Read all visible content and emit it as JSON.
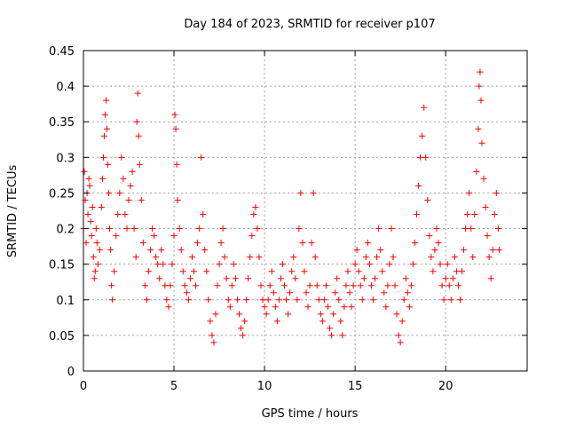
{
  "chart_data": {
    "type": "scatter",
    "title": "Day 184 of 2023, SRMTID for receiver p107",
    "xlabel": "GPS time / hours",
    "ylabel": "SRMTID / TECUs",
    "xlim": [
      0,
      24.5
    ],
    "ylim": [
      0,
      0.45
    ],
    "xticks": [
      0,
      5,
      10,
      15,
      20
    ],
    "xtick_labels": [
      "0",
      "5",
      "10",
      "15",
      "20"
    ],
    "yticks": [
      0,
      0.05,
      0.1,
      0.15,
      0.2,
      0.25,
      0.3,
      0.35,
      0.4,
      0.45
    ],
    "ytick_labels": [
      "0",
      "0.05",
      "0.1",
      "0.15",
      "0.2",
      "0.25",
      "0.3",
      "0.35",
      "0.4",
      "0.45"
    ],
    "grid": true,
    "marker": "plus",
    "color": "#ff0000",
    "series": [
      {
        "name": "SRMTID",
        "points": [
          [
            0.0,
            0.2
          ],
          [
            0.05,
            0.28
          ],
          [
            0.1,
            0.24
          ],
          [
            0.15,
            0.18
          ],
          [
            0.2,
            0.25
          ],
          [
            0.25,
            0.22
          ],
          [
            0.3,
            0.27
          ],
          [
            0.35,
            0.26
          ],
          [
            0.4,
            0.21
          ],
          [
            0.45,
            0.19
          ],
          [
            0.5,
            0.23
          ],
          [
            0.55,
            0.16
          ],
          [
            0.6,
            0.13
          ],
          [
            0.65,
            0.14
          ],
          [
            0.7,
            0.2
          ],
          [
            0.75,
            0.18
          ],
          [
            0.8,
            0.15
          ],
          [
            0.9,
            0.17
          ],
          [
            1.0,
            0.23
          ],
          [
            1.05,
            0.27
          ],
          [
            1.1,
            0.3
          ],
          [
            1.15,
            0.33
          ],
          [
            1.2,
            0.36
          ],
          [
            1.25,
            0.38
          ],
          [
            1.3,
            0.34
          ],
          [
            1.35,
            0.29
          ],
          [
            1.4,
            0.25
          ],
          [
            1.45,
            0.2
          ],
          [
            1.5,
            0.17
          ],
          [
            1.55,
            0.12
          ],
          [
            1.6,
            0.1
          ],
          [
            1.7,
            0.14
          ],
          [
            1.8,
            0.19
          ],
          [
            1.9,
            0.22
          ],
          [
            2.0,
            0.25
          ],
          [
            2.1,
            0.3
          ],
          [
            2.2,
            0.27
          ],
          [
            2.3,
            0.22
          ],
          [
            2.4,
            0.2
          ],
          [
            2.5,
            0.24
          ],
          [
            2.6,
            0.26
          ],
          [
            2.7,
            0.28
          ],
          [
            2.8,
            0.2
          ],
          [
            2.9,
            0.16
          ],
          [
            2.95,
            0.35
          ],
          [
            3.0,
            0.39
          ],
          [
            3.05,
            0.33
          ],
          [
            3.1,
            0.29
          ],
          [
            3.2,
            0.24
          ],
          [
            3.3,
            0.18
          ],
          [
            3.4,
            0.12
          ],
          [
            3.5,
            0.1
          ],
          [
            3.6,
            0.14
          ],
          [
            3.7,
            0.17
          ],
          [
            3.8,
            0.2
          ],
          [
            3.9,
            0.19
          ],
          [
            4.0,
            0.16
          ],
          [
            4.1,
            0.15
          ],
          [
            4.2,
            0.13
          ],
          [
            4.3,
            0.17
          ],
          [
            4.4,
            0.15
          ],
          [
            4.5,
            0.12
          ],
          [
            4.6,
            0.1
          ],
          [
            4.7,
            0.09
          ],
          [
            4.8,
            0.12
          ],
          [
            4.9,
            0.15
          ],
          [
            5.0,
            0.19
          ],
          [
            5.05,
            0.36
          ],
          [
            5.1,
            0.34
          ],
          [
            5.15,
            0.29
          ],
          [
            5.2,
            0.24
          ],
          [
            5.3,
            0.2
          ],
          [
            5.4,
            0.17
          ],
          [
            5.5,
            0.14
          ],
          [
            5.6,
            0.12
          ],
          [
            5.7,
            0.11
          ],
          [
            5.8,
            0.1
          ],
          [
            5.9,
            0.13
          ],
          [
            6.0,
            0.16
          ],
          [
            6.1,
            0.14
          ],
          [
            6.2,
            0.12
          ],
          [
            6.3,
            0.18
          ],
          [
            6.4,
            0.2
          ],
          [
            6.5,
            0.3
          ],
          [
            6.6,
            0.22
          ],
          [
            6.7,
            0.17
          ],
          [
            6.8,
            0.14
          ],
          [
            6.9,
            0.1
          ],
          [
            7.0,
            0.07
          ],
          [
            7.1,
            0.05
          ],
          [
            7.2,
            0.04
          ],
          [
            7.3,
            0.08
          ],
          [
            7.4,
            0.12
          ],
          [
            7.5,
            0.15
          ],
          [
            7.6,
            0.18
          ],
          [
            7.7,
            0.2
          ],
          [
            7.8,
            0.16
          ],
          [
            7.9,
            0.13
          ],
          [
            8.0,
            0.1
          ],
          [
            8.1,
            0.09
          ],
          [
            8.2,
            0.12
          ],
          [
            8.3,
            0.15
          ],
          [
            8.4,
            0.13
          ],
          [
            8.5,
            0.1
          ],
          [
            8.6,
            0.08
          ],
          [
            8.7,
            0.06
          ],
          [
            8.8,
            0.05
          ],
          [
            8.9,
            0.07
          ],
          [
            9.0,
            0.1
          ],
          [
            9.1,
            0.13
          ],
          [
            9.2,
            0.16
          ],
          [
            9.3,
            0.19
          ],
          [
            9.4,
            0.22
          ],
          [
            9.5,
            0.23
          ],
          [
            9.6,
            0.2
          ],
          [
            9.7,
            0.16
          ],
          [
            9.8,
            0.12
          ],
          [
            9.9,
            0.1
          ],
          [
            10.0,
            0.09
          ],
          [
            10.1,
            0.08
          ],
          [
            10.2,
            0.1
          ],
          [
            10.3,
            0.12
          ],
          [
            10.4,
            0.14
          ],
          [
            10.5,
            0.11
          ],
          [
            10.6,
            0.09
          ],
          [
            10.7,
            0.07
          ],
          [
            10.8,
            0.1
          ],
          [
            10.9,
            0.13
          ],
          [
            11.0,
            0.15
          ],
          [
            11.1,
            0.12
          ],
          [
            11.2,
            0.1
          ],
          [
            11.3,
            0.08
          ],
          [
            11.4,
            0.11
          ],
          [
            11.5,
            0.14
          ],
          [
            11.6,
            0.16
          ],
          [
            11.7,
            0.13
          ],
          [
            11.8,
            0.1
          ],
          [
            11.9,
            0.2
          ],
          [
            12.0,
            0.25
          ],
          [
            12.1,
            0.18
          ],
          [
            12.2,
            0.14
          ],
          [
            12.3,
            0.11
          ],
          [
            12.4,
            0.09
          ],
          [
            12.5,
            0.12
          ],
          [
            12.6,
            0.18
          ],
          [
            12.7,
            0.25
          ],
          [
            12.8,
            0.16
          ],
          [
            12.9,
            0.12
          ],
          [
            13.0,
            0.1
          ],
          [
            13.1,
            0.08
          ],
          [
            13.2,
            0.07
          ],
          [
            13.3,
            0.1
          ],
          [
            13.4,
            0.12
          ],
          [
            13.5,
            0.09
          ],
          [
            13.6,
            0.06
          ],
          [
            13.7,
            0.05
          ],
          [
            13.8,
            0.08
          ],
          [
            13.9,
            0.11
          ],
          [
            14.0,
            0.13
          ],
          [
            14.1,
            0.1
          ],
          [
            14.2,
            0.07
          ],
          [
            14.3,
            0.05
          ],
          [
            14.4,
            0.09
          ],
          [
            14.5,
            0.12
          ],
          [
            14.6,
            0.14
          ],
          [
            14.7,
            0.11
          ],
          [
            14.8,
            0.09
          ],
          [
            14.9,
            0.12
          ],
          [
            15.0,
            0.15
          ],
          [
            15.1,
            0.17
          ],
          [
            15.2,
            0.14
          ],
          [
            15.3,
            0.12
          ],
          [
            15.4,
            0.1
          ],
          [
            15.5,
            0.13
          ],
          [
            15.6,
            0.16
          ],
          [
            15.7,
            0.18
          ],
          [
            15.8,
            0.15
          ],
          [
            15.9,
            0.12
          ],
          [
            16.0,
            0.1
          ],
          [
            16.1,
            0.13
          ],
          [
            16.2,
            0.16
          ],
          [
            16.3,
            0.2
          ],
          [
            16.4,
            0.17
          ],
          [
            16.5,
            0.14
          ],
          [
            16.6,
            0.11
          ],
          [
            16.7,
            0.09
          ],
          [
            16.8,
            0.12
          ],
          [
            16.9,
            0.15
          ],
          [
            17.0,
            0.2
          ],
          [
            17.1,
            0.16
          ],
          [
            17.2,
            0.12
          ],
          [
            17.3,
            0.08
          ],
          [
            17.4,
            0.05
          ],
          [
            17.5,
            0.04
          ],
          [
            17.6,
            0.07
          ],
          [
            17.7,
            0.1
          ],
          [
            17.8,
            0.13
          ],
          [
            17.9,
            0.11
          ],
          [
            18.0,
            0.09
          ],
          [
            18.1,
            0.12
          ],
          [
            18.2,
            0.15
          ],
          [
            18.3,
            0.18
          ],
          [
            18.4,
            0.22
          ],
          [
            18.5,
            0.26
          ],
          [
            18.6,
            0.3
          ],
          [
            18.7,
            0.33
          ],
          [
            18.8,
            0.37
          ],
          [
            18.9,
            0.3
          ],
          [
            19.0,
            0.24
          ],
          [
            19.1,
            0.19
          ],
          [
            19.2,
            0.16
          ],
          [
            19.3,
            0.14
          ],
          [
            19.4,
            0.17
          ],
          [
            19.5,
            0.2
          ],
          [
            19.6,
            0.18
          ],
          [
            19.7,
            0.15
          ],
          [
            19.8,
            0.12
          ],
          [
            19.9,
            0.1
          ],
          [
            20.0,
            0.13
          ],
          [
            20.1,
            0.15
          ],
          [
            20.2,
            0.12
          ],
          [
            20.3,
            0.1
          ],
          [
            20.4,
            0.13
          ],
          [
            20.5,
            0.16
          ],
          [
            20.6,
            0.14
          ],
          [
            20.7,
            0.12
          ],
          [
            20.8,
            0.1
          ],
          [
            20.9,
            0.14
          ],
          [
            21.0,
            0.17
          ],
          [
            21.1,
            0.2
          ],
          [
            21.2,
            0.22
          ],
          [
            21.3,
            0.25
          ],
          [
            21.4,
            0.2
          ],
          [
            21.5,
            0.16
          ],
          [
            21.6,
            0.22
          ],
          [
            21.7,
            0.28
          ],
          [
            21.8,
            0.34
          ],
          [
            21.85,
            0.4
          ],
          [
            21.9,
            0.42
          ],
          [
            21.95,
            0.38
          ],
          [
            22.0,
            0.32
          ],
          [
            22.1,
            0.27
          ],
          [
            22.2,
            0.23
          ],
          [
            22.3,
            0.19
          ],
          [
            22.4,
            0.16
          ],
          [
            22.5,
            0.13
          ],
          [
            22.6,
            0.17
          ],
          [
            22.7,
            0.22
          ],
          [
            22.8,
            0.25
          ],
          [
            22.9,
            0.2
          ],
          [
            22.95,
            0.17
          ]
        ]
      }
    ]
  }
}
